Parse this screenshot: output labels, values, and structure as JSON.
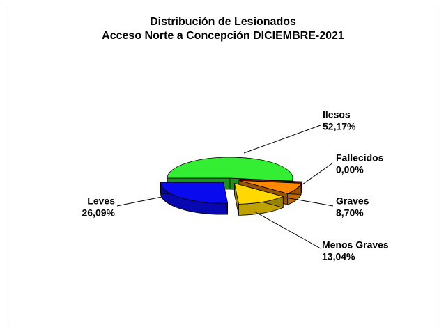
{
  "chart_data": {
    "type": "pie3d",
    "title": "Distribución de Lesionados",
    "subtitle": "Acceso Norte a Concepción DICIEMBRE-2021",
    "categories": [
      "Ilesos",
      "Fallecidos",
      "Graves",
      "Menos Graves",
      "Leves"
    ],
    "values": [
      52.17,
      0.0,
      8.7,
      13.04,
      26.09
    ],
    "value_labels": [
      "52,17%",
      "0,00%",
      "8,70%",
      "13,04%",
      "26,09%"
    ],
    "colors": [
      "#33ee33",
      "#cc2200",
      "#ff8a00",
      "#ffd800",
      "#0a0aee"
    ]
  }
}
